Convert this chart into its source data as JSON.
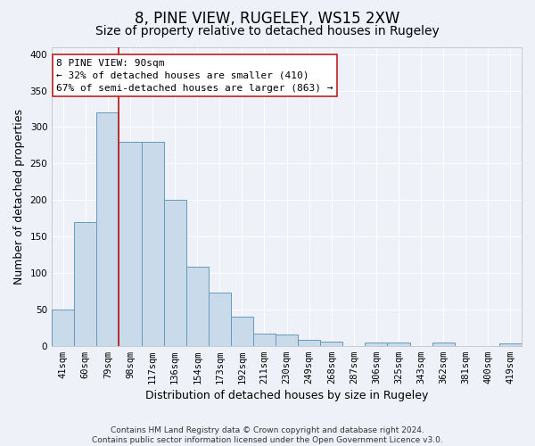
{
  "title": "8, PINE VIEW, RUGELEY, WS15 2XW",
  "subtitle": "Size of property relative to detached houses in Rugeley",
  "xlabel": "Distribution of detached houses by size in Rugeley",
  "ylabel": "Number of detached properties",
  "categories": [
    "41sqm",
    "60sqm",
    "79sqm",
    "98sqm",
    "117sqm",
    "136sqm",
    "154sqm",
    "173sqm",
    "192sqm",
    "211sqm",
    "230sqm",
    "249sqm",
    "268sqm",
    "287sqm",
    "306sqm",
    "325sqm",
    "343sqm",
    "362sqm",
    "381sqm",
    "400sqm",
    "419sqm"
  ],
  "values": [
    50,
    170,
    320,
    280,
    280,
    200,
    108,
    73,
    40,
    17,
    16,
    8,
    6,
    0,
    4,
    5,
    0,
    4,
    0,
    0,
    3
  ],
  "bar_color": "#c9daea",
  "bar_edge_color": "#6699bb",
  "background_color": "#eef2f8",
  "grid_color": "#ffffff",
  "vline_x_index": 2,
  "vline_color": "#bb2222",
  "annotation_line1": "8 PINE VIEW: 90sqm",
  "annotation_line2": "← 32% of detached houses are smaller (410)",
  "annotation_line3": "67% of semi-detached houses are larger (863) →",
  "annotation_box_color": "#ffffff",
  "annotation_box_edge_color": "#bb2222",
  "ylim": [
    0,
    410
  ],
  "yticks": [
    0,
    50,
    100,
    150,
    200,
    250,
    300,
    350,
    400
  ],
  "footer": "Contains HM Land Registry data © Crown copyright and database right 2024.\nContains public sector information licensed under the Open Government Licence v3.0.",
  "title_fontsize": 12,
  "subtitle_fontsize": 10,
  "tick_fontsize": 7.5,
  "ylabel_fontsize": 9,
  "xlabel_fontsize": 9,
  "annotation_fontsize": 8,
  "footer_fontsize": 6.5
}
